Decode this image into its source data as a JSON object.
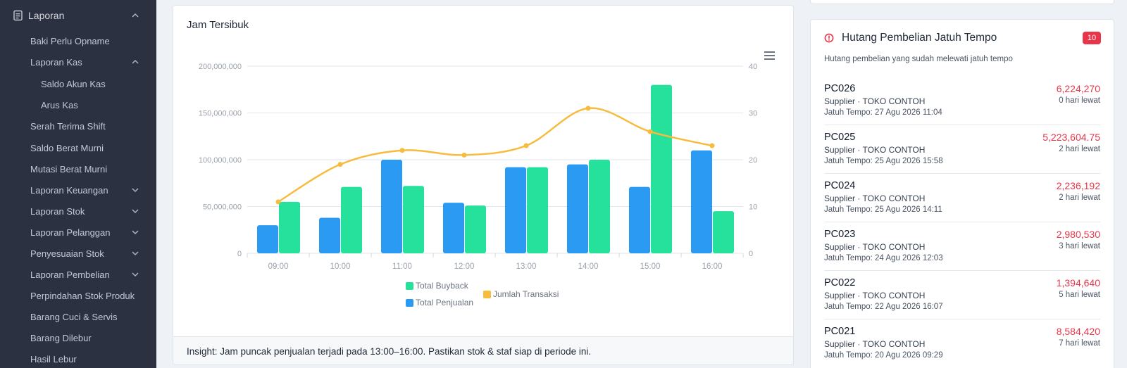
{
  "sidebar": {
    "items": [
      {
        "label": "Laporan",
        "chevron": "up",
        "level": 0
      },
      {
        "label": "Baki Perlu Opname",
        "chevron": "",
        "level": 1
      },
      {
        "label": "Laporan Kas",
        "chevron": "up",
        "level": 1
      },
      {
        "label": "Saldo Akun Kas",
        "chevron": "",
        "level": 2
      },
      {
        "label": "Arus Kas",
        "chevron": "",
        "level": 2
      },
      {
        "label": "Serah Terima Shift",
        "chevron": "",
        "level": 1
      },
      {
        "label": "Saldo Berat Murni",
        "chevron": "",
        "level": 1
      },
      {
        "label": "Mutasi Berat Murni",
        "chevron": "",
        "level": 1
      },
      {
        "label": "Laporan Keuangan",
        "chevron": "down",
        "level": 1
      },
      {
        "label": "Laporan Stok",
        "chevron": "down",
        "level": 1
      },
      {
        "label": "Laporan Pelanggan",
        "chevron": "down",
        "level": 1
      },
      {
        "label": "Penyesuaian Stok",
        "chevron": "down",
        "level": 1
      },
      {
        "label": "Laporan Pembelian",
        "chevron": "down",
        "level": 1
      },
      {
        "label": "Perpindahan Stok Produk",
        "chevron": "",
        "level": 1
      },
      {
        "label": "Barang Cuci & Servis",
        "chevron": "",
        "level": 1
      },
      {
        "label": "Barang Dilebur",
        "chevron": "",
        "level": 1
      },
      {
        "label": "Hasil Lebur",
        "chevron": "",
        "level": 1
      }
    ],
    "report_icon": "document-icon"
  },
  "chart_card": {
    "title": "Jam Tersibuk",
    "menu_icon": "hamburger-menu-icon",
    "insight": "Insight: Jam puncak penjualan terjadi pada 13:00–16:00. Pastikan stok & staf siap di periode ini."
  },
  "chart_data": {
    "type": "bar",
    "categories": [
      "09:00",
      "10:00",
      "11:00",
      "12:00",
      "13:00",
      "14:00",
      "15:00",
      "16:00"
    ],
    "series": [
      {
        "name": "Total Penjualan",
        "kind": "bar",
        "axis": "left",
        "color": "#2b9af3",
        "values": [
          30000000,
          38000000,
          100000000,
          54000000,
          92000000,
          95000000,
          71000000,
          110000000
        ]
      },
      {
        "name": "Total Buyback",
        "kind": "bar",
        "axis": "left",
        "color": "#25e19c",
        "values": [
          55000000,
          71000000,
          72000000,
          51000000,
          92000000,
          100000000,
          180000000,
          45000000
        ]
      },
      {
        "name": "Jumlah Transaksi",
        "kind": "line",
        "axis": "right",
        "color": "#f7bb3e",
        "values": [
          11,
          19,
          22,
          21,
          23,
          31,
          26,
          23
        ]
      }
    ],
    "y_left": {
      "min": 0,
      "max": 200000000,
      "ticks": [
        0,
        50000000,
        100000000,
        150000000,
        200000000
      ],
      "tick_labels": [
        "0",
        "50,000,000",
        "100,000,000",
        "150,000,000",
        "200,000,000"
      ]
    },
    "y_right": {
      "min": 0,
      "max": 40,
      "ticks": [
        0,
        10,
        20,
        30,
        40
      ],
      "tick_labels": [
        "0",
        "10",
        "20",
        "30",
        "40"
      ]
    },
    "legend": {
      "items": [
        "Total Buyback",
        "Total Penjualan",
        "Jumlah Transaksi"
      ],
      "placement": "bottom-center"
    },
    "grid": true
  },
  "debt_card": {
    "title": "Hutang Pembelian Jatuh Tempo",
    "badge": "10",
    "subtitle": "Hutang pembelian yang sudah melewati jatuh tempo",
    "warning_icon": "alert-circle-icon",
    "accent_color": "#e8354a",
    "items": [
      {
        "code": "PC026",
        "amount": "6,224,270",
        "supplier": "Supplier · TOKO CONTOH",
        "late": "0 hari lewat",
        "due": "Jatuh Tempo: 27 Agu 2026 11:04"
      },
      {
        "code": "PC025",
        "amount": "5,223,604.75",
        "supplier": "Supplier · TOKO CONTOH",
        "late": "2 hari lewat",
        "due": "Jatuh Tempo: 25 Agu 2026 15:58"
      },
      {
        "code": "PC024",
        "amount": "2,236,192",
        "supplier": "Supplier · TOKO CONTOH",
        "late": "2 hari lewat",
        "due": "Jatuh Tempo: 25 Agu 2026 14:11"
      },
      {
        "code": "PC023",
        "amount": "2,980,530",
        "supplier": "Supplier · TOKO CONTOH",
        "late": "3 hari lewat",
        "due": "Jatuh Tempo: 24 Agu 2026 12:03"
      },
      {
        "code": "PC022",
        "amount": "1,394,640",
        "supplier": "Supplier · TOKO CONTOH",
        "late": "5 hari lewat",
        "due": "Jatuh Tempo: 22 Agu 2026 16:07"
      },
      {
        "code": "PC021",
        "amount": "8,584,420",
        "supplier": "Supplier · TOKO CONTOH",
        "late": "7 hari lewat",
        "due": "Jatuh Tempo: 20 Agu 2026 09:29"
      }
    ]
  }
}
